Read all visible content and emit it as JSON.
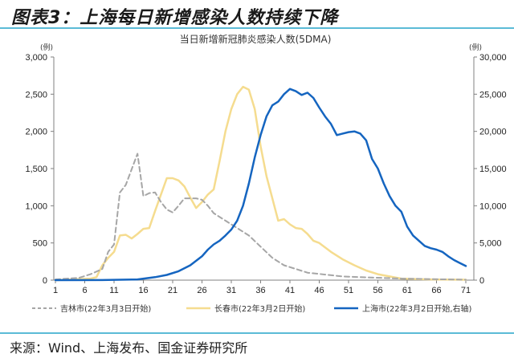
{
  "figure": {
    "title": "图表3：上海每日新增感染人数持续下降",
    "source": "来源：Wind、上海发布、国金证券研究所"
  },
  "colors": {
    "jilin": "#a6a6a6",
    "changchun": "#f5dc8f",
    "shanghai": "#1565c0",
    "rule": "#5bbbd6",
    "axis": "#808080"
  },
  "chart_data": {
    "type": "line",
    "title": "当日新增新冠肺炎感染人数(5DMA)",
    "xlabel": "",
    "ylabel": "(例)",
    "ylabel_right": "(例)",
    "ylim": [
      0,
      3000
    ],
    "ylim_right": [
      0,
      30000
    ],
    "yticks": [
      "0",
      "500",
      "1,000",
      "1,500",
      "2,000",
      "2,500",
      "3,000"
    ],
    "yticks_right": [
      "0",
      "5,000",
      "10,000",
      "15,000",
      "20,000",
      "25,000",
      "30,000"
    ],
    "xticks": [
      "1",
      "6",
      "11",
      "16",
      "21",
      "26",
      "31",
      "36",
      "41",
      "46",
      "51",
      "56",
      "61",
      "66",
      "71"
    ],
    "xlim": [
      1,
      71
    ],
    "grid": false,
    "legend_position": "bottom",
    "series": [
      {
        "name": "吉林市(22年3月3日开始)",
        "axis": "left",
        "style": "dashed",
        "x": [
          1,
          3,
          5,
          7,
          9,
          10,
          11,
          12,
          13,
          15,
          16,
          17,
          18,
          19,
          20,
          21,
          22,
          23,
          25,
          26,
          27,
          28,
          30,
          32,
          34,
          36,
          38,
          40,
          42,
          44,
          50,
          60,
          71
        ],
        "values": [
          10,
          20,
          30,
          80,
          150,
          380,
          480,
          1180,
          1280,
          1700,
          1130,
          1170,
          1180,
          1050,
          950,
          910,
          1000,
          1100,
          1100,
          1080,
          1000,
          900,
          800,
          700,
          600,
          450,
          300,
          200,
          150,
          100,
          50,
          20,
          5
        ]
      },
      {
        "name": "长春市(22年3月2日开始)",
        "axis": "left",
        "style": "solid",
        "x": [
          1,
          7,
          8,
          9,
          10,
          11,
          12,
          13,
          14,
          15,
          16,
          17,
          18,
          19,
          20,
          21,
          22,
          23,
          24,
          25,
          26,
          27,
          28,
          29,
          30,
          31,
          32,
          33,
          34,
          35,
          36,
          37,
          38,
          39,
          40,
          41,
          42,
          43,
          44,
          45,
          46,
          48,
          50,
          52,
          54,
          56,
          58,
          60,
          65,
          71
        ],
        "values": [
          0,
          20,
          40,
          200,
          300,
          380,
          600,
          610,
          560,
          620,
          690,
          700,
          930,
          1150,
          1370,
          1370,
          1340,
          1260,
          1110,
          970,
          1050,
          1150,
          1220,
          1600,
          2000,
          2300,
          2500,
          2600,
          2560,
          2300,
          1800,
          1400,
          1100,
          800,
          820,
          750,
          700,
          690,
          620,
          530,
          500,
          380,
          280,
          200,
          130,
          80,
          50,
          20,
          10,
          5
        ]
      },
      {
        "name": "上海市(22年3月2日开始,右轴)",
        "axis": "right",
        "style": "solid",
        "x": [
          1,
          10,
          15,
          18,
          20,
          22,
          24,
          26,
          27,
          28,
          29,
          30,
          31,
          32,
          33,
          34,
          35,
          36,
          37,
          38,
          39,
          40,
          41,
          42,
          43,
          44,
          45,
          46,
          47,
          48,
          49,
          50,
          51,
          52,
          53,
          54,
          55,
          56,
          57,
          58,
          59,
          60,
          61,
          62,
          63,
          64,
          65,
          66,
          67,
          68,
          69,
          70,
          71
        ],
        "values": [
          0,
          20,
          100,
          400,
          700,
          1200,
          2000,
          3200,
          4100,
          4800,
          5300,
          6000,
          6800,
          8000,
          10000,
          13000,
          16500,
          19500,
          22000,
          23500,
          24000,
          25000,
          25700,
          25400,
          24900,
          25200,
          24500,
          23200,
          22000,
          21000,
          19500,
          19700,
          19900,
          20000,
          19700,
          18800,
          16300,
          15000,
          13000,
          11300,
          10000,
          9200,
          7200,
          6000,
          5300,
          4600,
          4300,
          4100,
          3800,
          3200,
          2700,
          2300,
          1900
        ]
      }
    ]
  }
}
